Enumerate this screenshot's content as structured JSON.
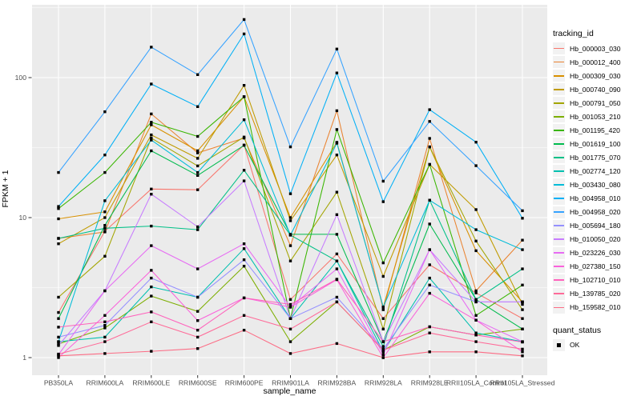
{
  "chart_data": {
    "type": "line",
    "title": "",
    "xlabel": "sample_name",
    "ylabel": "FPKM + 1",
    "y_scale": "log10",
    "y_tick_labels": [
      "1",
      "10",
      "100"
    ],
    "y_tick_values": [
      1,
      10,
      100
    ],
    "y_minor_values": [
      3.1623,
      31.623,
      316.23
    ],
    "ylim": [
      0.75,
      340
    ],
    "grid": true,
    "legend_position": "right",
    "categories": [
      "PB350LA",
      "RRIM600LA",
      "RRIM600LE",
      "RRIM600SE",
      "RRIM600PE",
      "RRIM901LA",
      "RRIM928BA",
      "RRIM928LA",
      "RRIM928LE",
      "RRII105LA_Control",
      "RRII105LA_Stressed"
    ],
    "series": [
      {
        "name": "Hb_000003_030",
        "color": "#F8766D",
        "values": [
          2.1,
          8,
          16,
          15.8,
          33,
          2.6,
          5.5,
          1.9,
          4.6,
          2.9,
          1.9
        ]
      },
      {
        "name": "Hb_000012_400",
        "color": "#EA8331",
        "values": [
          7.1,
          7.9,
          55,
          29,
          37,
          6.3,
          58,
          2.2,
          36.8,
          3,
          6.9
        ]
      },
      {
        "name": "Hb_000309_030",
        "color": "#D89000",
        "values": [
          9.8,
          11,
          46,
          30,
          73,
          10,
          34.5,
          2.3,
          32,
          5.8,
          2.5
        ]
      },
      {
        "name": "Hb_000740_090",
        "color": "#C09B00",
        "values": [
          6.5,
          10,
          39,
          26.5,
          88,
          9.5,
          28,
          3.8,
          24,
          11.4,
          2.4
        ]
      },
      {
        "name": "Hb_000791_050",
        "color": "#A3A500",
        "values": [
          2.7,
          5.3,
          37,
          23.4,
          37.6,
          4.9,
          15.2,
          1.6,
          32,
          6.8,
          2.2
        ]
      },
      {
        "name": "Hb_001053_210",
        "color": "#7CAE00",
        "values": [
          1.25,
          1.63,
          2.75,
          2.14,
          4.5,
          1.3,
          2.5,
          1.13,
          1.66,
          1.45,
          1.6
        ]
      },
      {
        "name": "Hb_001195_420",
        "color": "#39B600",
        "values": [
          11.6,
          21,
          48,
          38,
          73,
          1.9,
          42.6,
          4.75,
          24,
          2,
          3.3
        ]
      },
      {
        "name": "Hb_001619_100",
        "color": "#00BB4E",
        "values": [
          1.9,
          8.8,
          30,
          20,
          32.8,
          7.6,
          7.6,
          1.3,
          9,
          2.6,
          1.6
        ]
      },
      {
        "name": "Hb_001775_070",
        "color": "#00C087",
        "values": [
          7.1,
          8.4,
          8.7,
          8.2,
          21.8,
          7.5,
          4.9,
          1.2,
          13.3,
          2.6,
          4.3
        ]
      },
      {
        "name": "Hb_002774_120",
        "color": "#00C0AF",
        "values": [
          1.3,
          1.4,
          3.2,
          2.7,
          6,
          1.9,
          4.9,
          1.1,
          3.7,
          1.5,
          1.3
        ]
      },
      {
        "name": "Hb_003430_080",
        "color": "#00BCD8",
        "values": [
          1.3,
          13.2,
          35.8,
          21,
          50,
          7.5,
          34,
          2.3,
          13.3,
          8.2,
          5.9
        ]
      },
      {
        "name": "Hb_004958_010",
        "color": "#00B0F6",
        "values": [
          12,
          28,
          90,
          62,
          205,
          14.8,
          108,
          13,
          59,
          34.6,
          9.9
        ]
      },
      {
        "name": "Hb_004958_020",
        "color": "#35A2FF",
        "values": [
          21,
          57,
          165,
          105,
          260,
          32,
          160,
          18.2,
          48.6,
          23.5,
          11.2
        ]
      },
      {
        "name": "Hb_005694_180",
        "color": "#9590FF",
        "values": [
          1.4,
          1.7,
          3.7,
          2.7,
          5,
          1.9,
          2.7,
          1.15,
          3.3,
          2.5,
          2.5
        ]
      },
      {
        "name": "Hb_010050_020",
        "color": "#C77CFF",
        "values": [
          1.22,
          3,
          14.7,
          8.6,
          18.3,
          1.9,
          10.5,
          1.3,
          5.9,
          2.5,
          2.5
        ]
      },
      {
        "name": "Hb_023226_030",
        "color": "#E76BF3",
        "values": [
          1.05,
          3,
          6.3,
          4.3,
          6.5,
          2.3,
          4.3,
          1.05,
          5.9,
          1.85,
          1.3
        ]
      },
      {
        "name": "Hb_027380_150",
        "color": "#FA62DB",
        "values": [
          1,
          2,
          4.2,
          1.84,
          2.67,
          2.29,
          3.6,
          1,
          2.88,
          1.85,
          1.1
        ]
      },
      {
        "name": "Hb_102710_010",
        "color": "#FF62BC",
        "values": [
          1.65,
          1.8,
          2.12,
          1.57,
          2.67,
          2.4,
          3.63,
          1.3,
          1.66,
          1.45,
          1.29
        ]
      },
      {
        "name": "Hb_139785_020",
        "color": "#FF6A98",
        "values": [
          1.06,
          1.3,
          1.8,
          1.4,
          2,
          1.6,
          2.5,
          1.13,
          1.5,
          1.3,
          1.15
        ]
      },
      {
        "name": "Hb_159582_010",
        "color": "#FC6C85",
        "values": [
          1.03,
          1.07,
          1.11,
          1.16,
          1.57,
          1.07,
          1.26,
          1,
          1.1,
          1.1,
          1.03
        ]
      }
    ],
    "legend": {
      "title": "tracking_id"
    },
    "quant_legend": {
      "title": "quant_status",
      "items": [
        {
          "label": "OK",
          "shape": "filled-square",
          "color": "#000000"
        }
      ]
    },
    "point_shape": "filled-square",
    "point_color": "#000000"
  },
  "style": {
    "panel_bg": "#EBEBEB",
    "grid_color": "#FFFFFF",
    "key_bg": "#F2F2F2",
    "tick_color": "#333333",
    "tick_label_color": "#4D4D4D",
    "axis_title_color": "#000000"
  }
}
